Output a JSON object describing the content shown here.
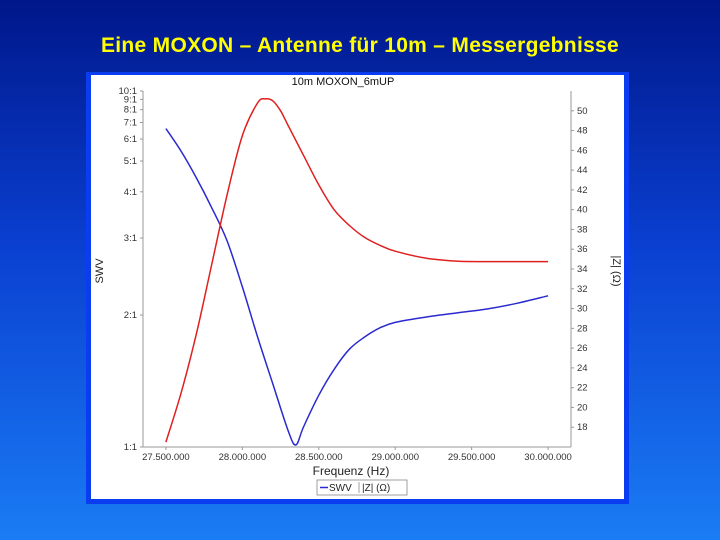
{
  "slide": {
    "title": "Eine MOXON – Antenne für 10m – Messergebnisse"
  },
  "colors": {
    "swr_series": "#2a2ad0",
    "impedance_series": "#e02020",
    "frame": "#0a3df0"
  },
  "chart_data": {
    "type": "line",
    "title": "10m MOXON_6mUP",
    "xlabel": "Frequenz (Hz)",
    "ylabel_left": "SWV",
    "ylabel_right": "|Z| (Ω)",
    "x_ticks": [
      "27.500.000",
      "28.000.000",
      "28.500.000",
      "29.000.000",
      "29.500.000",
      "30.000.000"
    ],
    "xlim": [
      27350000,
      30150000
    ],
    "y_left_scale": "swr",
    "y_left_ticks": [
      "10:1",
      "9:1",
      "8:1",
      "7:1",
      "6:1",
      "5:1",
      "4:1",
      "3:1",
      "2:1",
      "1:1"
    ],
    "y_left_values": [
      10,
      9,
      8,
      7,
      6,
      5,
      4,
      3,
      2,
      1.1
    ],
    "y_right_ticks": [
      "50",
      "48",
      "46",
      "44",
      "42",
      "40",
      "38",
      "36",
      "34",
      "32",
      "30",
      "28",
      "26",
      "24",
      "22",
      "20",
      "18"
    ],
    "ylim_right": [
      16,
      52
    ],
    "legend": [
      "SWV",
      "|Z| (Ω)"
    ],
    "legend_position": "bottom-center",
    "grid": false,
    "series": [
      {
        "name": "SWV",
        "axis": "left",
        "x": [
          27500000,
          27600000,
          27700000,
          27800000,
          27900000,
          28000000,
          28100000,
          28200000,
          28300000,
          28350000,
          28400000,
          28500000,
          28600000,
          28700000,
          28800000,
          28900000,
          29000000,
          29200000,
          29400000,
          29600000,
          29800000,
          30000000
        ],
        "values": [
          6.6,
          5.4,
          4.4,
          3.6,
          2.95,
          2.3,
          1.8,
          1.45,
          1.18,
          1.11,
          1.2,
          1.38,
          1.55,
          1.7,
          1.8,
          1.88,
          1.93,
          1.98,
          2.02,
          2.06,
          2.12,
          2.2
        ]
      },
      {
        "name": "|Z| (Ω)",
        "axis": "right",
        "x": [
          27500000,
          27600000,
          27700000,
          27800000,
          27900000,
          28000000,
          28100000,
          28150000,
          28200000,
          28250000,
          28300000,
          28400000,
          28500000,
          28600000,
          28700000,
          28800000,
          28900000,
          29000000,
          29200000,
          29400000,
          29600000,
          29800000,
          30000000
        ],
        "values": [
          16.5,
          21.5,
          27.5,
          34.5,
          41.5,
          47.5,
          50.8,
          51.2,
          51.0,
          50.0,
          48.5,
          45.5,
          42.5,
          40.0,
          38.4,
          37.2,
          36.4,
          35.8,
          35.1,
          34.8,
          34.75,
          34.75,
          34.75
        ]
      }
    ]
  }
}
